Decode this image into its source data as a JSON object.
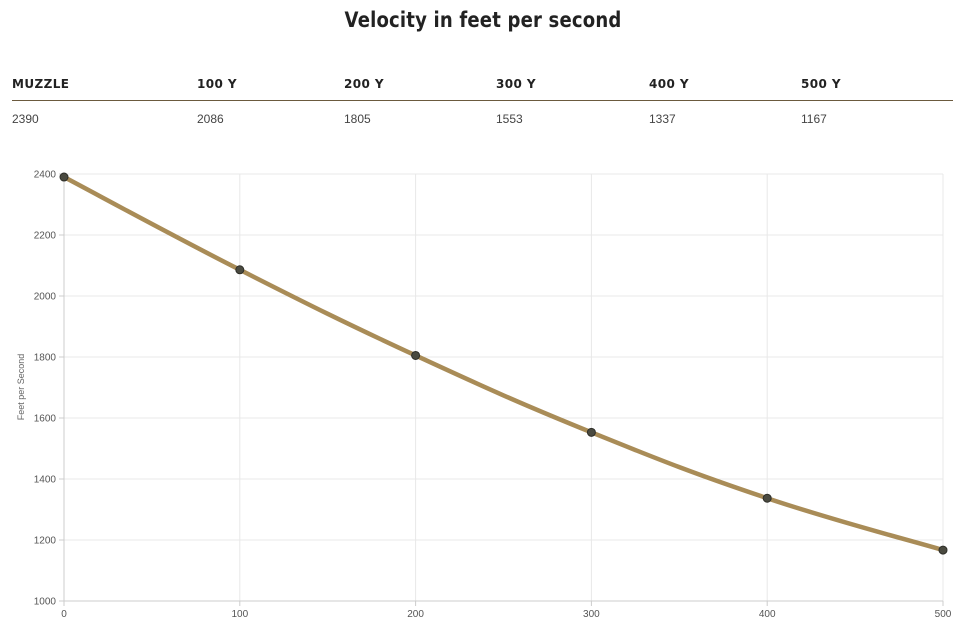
{
  "title": "Velocity in feet per second",
  "table": {
    "headers": [
      "MUZZLE",
      "100 Y",
      "200 Y",
      "300 Y",
      "400 Y",
      "500 Y"
    ],
    "values": [
      "2390",
      "2086",
      "1805",
      "1553",
      "1337",
      "1167"
    ]
  },
  "colors": {
    "line": "#a98c57",
    "point_fill": "#4a4a40",
    "point_stroke": "#2e2e28",
    "grid": "#e8e8e8",
    "axis": "#cccccc",
    "table_rule": "#6b5a3e"
  },
  "chart_data": {
    "type": "line",
    "title": "",
    "xlabel": "",
    "ylabel": "Feet per Second",
    "x": [
      0,
      100,
      200,
      300,
      400,
      500
    ],
    "series": [
      {
        "values": [
          2390,
          2086,
          1805,
          1553,
          1337,
          1167
        ]
      }
    ],
    "xlim": [
      0,
      500
    ],
    "ylim": [
      1000,
      2400
    ],
    "x_ticks": [
      0,
      100,
      200,
      300,
      400,
      500
    ],
    "y_ticks": [
      1000,
      1200,
      1400,
      1600,
      1800,
      2000,
      2200,
      2400
    ],
    "grid": true,
    "legend": "none"
  }
}
